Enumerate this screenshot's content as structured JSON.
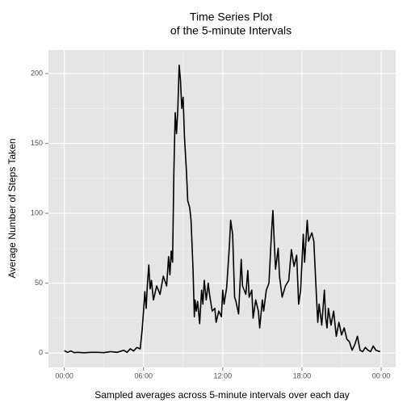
{
  "chart_data": {
    "type": "line",
    "title": [
      "Time Series Plot",
      "of the 5-minute Intervals"
    ],
    "x_label": "Sampled averages across 5-minute intervals over each day",
    "y_label": "Average Number of Steps Taken",
    "color": "#000000",
    "x": [
      0,
      0.25,
      0.5,
      0.75,
      1,
      1.5,
      2,
      2.5,
      3,
      3.5,
      4,
      4.5,
      4.75,
      5,
      5.25,
      5.5,
      5.75,
      5.9,
      6.0,
      6.1,
      6.2,
      6.3,
      6.4,
      6.5,
      6.6,
      6.75,
      7,
      7.25,
      7.5,
      7.75,
      7.9,
      8.0,
      8.1,
      8.2,
      8.3,
      8.4,
      8.5,
      8.6,
      8.7,
      8.8,
      8.9,
      9.0,
      9.1,
      9.25,
      9.35,
      9.5,
      9.6,
      9.75,
      9.85,
      9.9,
      10.0,
      10.1,
      10.25,
      10.4,
      10.5,
      10.6,
      10.75,
      10.9,
      11.0,
      11.2,
      11.4,
      11.5,
      11.7,
      11.9,
      12.0,
      12.1,
      12.3,
      12.5,
      12.6,
      12.75,
      12.9,
      13.0,
      13.2,
      13.4,
      13.5,
      13.75,
      13.9,
      14.0,
      14.2,
      14.3,
      14.5,
      14.7,
      14.8,
      15.0,
      15.1,
      15.3,
      15.5,
      15.7,
      15.8,
      15.9,
      16.0,
      16.2,
      16.3,
      16.5,
      16.75,
      17.0,
      17.2,
      17.4,
      17.6,
      17.75,
      17.9,
      18.1,
      18.2,
      18.4,
      18.5,
      18.75,
      18.9,
      19.0,
      19.1,
      19.2,
      19.3,
      19.5,
      19.7,
      19.8,
      19.9,
      20.0,
      20.2,
      20.4,
      20.6,
      20.8,
      21.0,
      21.2,
      21.4,
      21.6,
      21.8,
      22.0,
      22.2,
      22.4,
      22.6,
      22.8,
      23.0,
      23.2,
      23.4,
      23.6,
      23.92
    ],
    "y": [
      1.7,
      0.5,
      1.5,
      0.3,
      0.5,
      0.2,
      0.5,
      0.5,
      0.3,
      1,
      0.5,
      2,
      0.5,
      3,
      1.5,
      4,
      3,
      17,
      30,
      44,
      32,
      50,
      63,
      46,
      52,
      38,
      48,
      42,
      55,
      48,
      69,
      56,
      73,
      65,
      130,
      172,
      157,
      175,
      206,
      195,
      175,
      183,
      155,
      130,
      109,
      104,
      95,
      60,
      26,
      38,
      30,
      37,
      21,
      45,
      35,
      52,
      38,
      50,
      42,
      30,
      32,
      22,
      30,
      26,
      45,
      35,
      47,
      76,
      95,
      85,
      40,
      37,
      28,
      67,
      48,
      42,
      59,
      40,
      45,
      25,
      38,
      30,
      18,
      38,
      30,
      45,
      50,
      87,
      102,
      80,
      60,
      75,
      55,
      40,
      48,
      52,
      74,
      62,
      70,
      35,
      45,
      85,
      65,
      95,
      80,
      86,
      80,
      60,
      40,
      22,
      35,
      20,
      45,
      25,
      18,
      32,
      20,
      30,
      12,
      22,
      13,
      18,
      10,
      8,
      2,
      6,
      12,
      2,
      1,
      4,
      2,
      1,
      5,
      2,
      1
    ],
    "xlim": [
      -1.2,
      25.1
    ],
    "ylim": [
      -10.3,
      216.8
    ],
    "xticks": [
      {
        "value": 0,
        "label": "00:00"
      },
      {
        "value": 6,
        "label": "06:00"
      },
      {
        "value": 12,
        "label": "12:00"
      },
      {
        "value": 18,
        "label": "18:00"
      },
      {
        "value": 24,
        "label": "00:00"
      }
    ],
    "yticks": [
      0,
      50,
      100,
      150,
      200
    ],
    "x_minor_ticks": [
      3,
      9,
      15,
      21
    ],
    "y_minor_ticks": [
      25,
      75,
      125,
      175
    ],
    "grid": true
  }
}
